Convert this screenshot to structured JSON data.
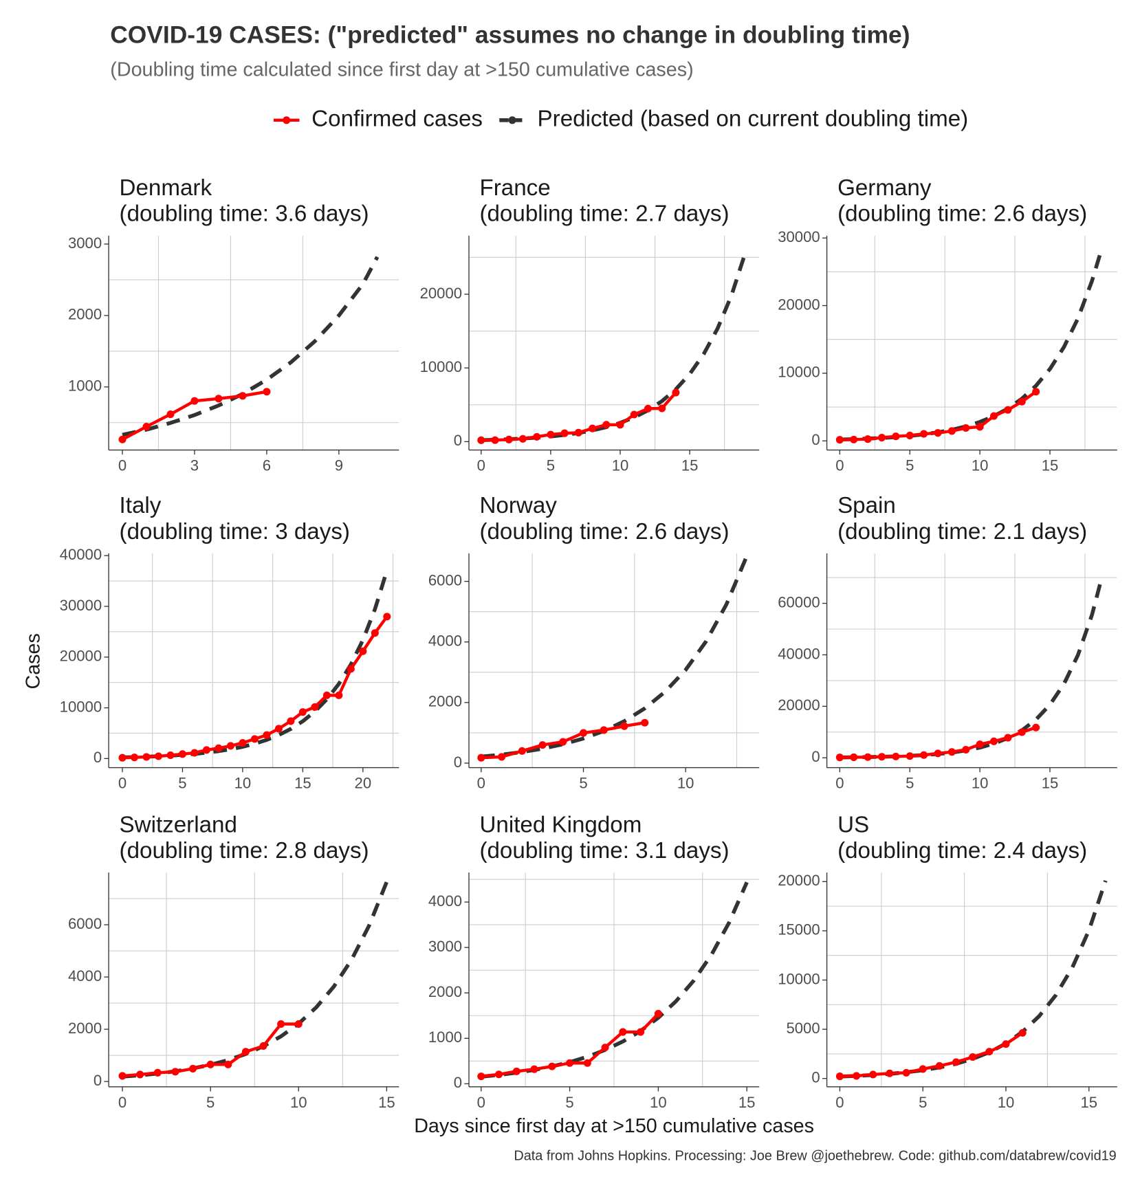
{
  "title": "COVID-19 CASES: (\"predicted\" assumes no change in doubling time)",
  "subtitle": "(Doubling time calculated since first day at >150 cumulative cases)",
  "x_label": "Days since first day at >150 cumulative cases",
  "y_label": "Cases",
  "caption": "Data from Johns Hopkins. Processing: Joe Brew @joethebrew. Code: github.com/databrew/covid19",
  "chart_data": [
    {
      "type": "line",
      "title": "Denmark",
      "subtitle": "(doubling time: 3.6 days)",
      "xlim": [
        -0.57,
        11.5
      ],
      "ylim": [
        117,
        3117
      ],
      "xticks": [
        0,
        3,
        6,
        9
      ],
      "yticks": [
        1000,
        2000,
        3000
      ],
      "x_grid": [
        1.5,
        4.5,
        7.5
      ],
      "y_grid": [
        500,
        1500,
        2500
      ],
      "series": [
        {
          "name": "Confirmed cases",
          "color": "#ff0000",
          "dots": true,
          "x": [
            0,
            1,
            2,
            3,
            4,
            5,
            6
          ],
          "values": [
            264,
            444,
            617,
            804,
            836,
            875,
            933
          ]
        },
        {
          "name": "Predicted (based on current doubling time)",
          "color": "#333333",
          "dashed": true,
          "x": [
            0,
            1,
            2,
            3,
            4,
            5,
            6,
            7,
            8,
            9,
            10,
            10.6
          ],
          "values": [
            330,
            402,
            496,
            606,
            740,
            902,
            1101,
            1343,
            1639,
            2000,
            2440,
            2820
          ]
        }
      ]
    },
    {
      "type": "line",
      "title": "France",
      "subtitle": "(doubling time: 2.7 days)",
      "xlim": [
        -0.88,
        20.0
      ],
      "ylim": [
        -1134,
        27938
      ],
      "xticks": [
        0,
        5,
        10,
        15
      ],
      "yticks": [
        0,
        10000,
        20000
      ],
      "x_grid": [
        2.5,
        7.5,
        12.5,
        17.5
      ],
      "y_grid": [
        5000,
        15000,
        25000
      ],
      "series": [
        {
          "name": "Confirmed cases",
          "color": "#ff0000",
          "dots": true,
          "x": [
            0,
            1,
            2,
            3,
            4,
            5,
            6,
            7,
            8,
            9,
            10,
            11,
            12,
            13,
            14
          ],
          "values": [
            191,
            204,
            288,
            380,
            656,
            959,
            1136,
            1217,
            1792,
            2289,
            2290,
            3672,
            4480,
            4513,
            6650
          ]
        },
        {
          "name": "Predicted (based on current doubling time)",
          "color": "#333333",
          "dashed": true,
          "x": [
            0,
            1,
            2,
            3,
            4,
            5,
            6,
            7,
            8,
            9,
            10,
            11,
            12,
            13,
            14,
            15,
            16,
            17,
            18,
            19
          ],
          "values": [
            195,
            252,
            326,
            421,
            545,
            704,
            910,
            1177,
            1521,
            1966,
            2542,
            3286,
            4248,
            5491,
            7098,
            9176,
            11862,
            15334,
            19822,
            25624
          ]
        }
      ]
    },
    {
      "type": "line",
      "title": "Germany",
      "subtitle": "(doubling time: 2.6 days)",
      "xlim": [
        -0.92,
        19.8
      ],
      "ylim": [
        -1348,
        30337
      ],
      "xticks": [
        0,
        5,
        10,
        15
      ],
      "yticks": [
        0,
        10000,
        20000,
        30000
      ],
      "x_grid": [
        2.5,
        7.5,
        12.5,
        17.5
      ],
      "y_grid": [
        5000,
        15000,
        25000
      ],
      "series": [
        {
          "name": "Confirmed cases",
          "color": "#ff0000",
          "dots": true,
          "x": [
            0,
            1,
            2,
            3,
            4,
            5,
            6,
            7,
            8,
            9,
            10,
            11,
            12,
            13,
            14
          ],
          "values": [
            159,
            196,
            262,
            482,
            670,
            799,
            1040,
            1176,
            1457,
            1908,
            2078,
            3675,
            4585,
            5795,
            7272
          ]
        },
        {
          "name": "Predicted (based on current doubling time)",
          "color": "#333333",
          "dashed": true,
          "x": [
            0,
            1,
            2,
            3,
            4,
            5,
            6,
            7,
            8,
            9,
            10,
            11,
            12,
            13,
            14,
            15,
            16,
            17,
            18,
            18.6
          ],
          "values": [
            195,
            255,
            332,
            434,
            566,
            739,
            965,
            1260,
            1645,
            2147,
            2803,
            3660,
            4778,
            6237,
            8143,
            10630,
            13878,
            18117,
            23652,
            27750
          ]
        }
      ]
    },
    {
      "type": "line",
      "title": "Italy",
      "subtitle": "(doubling time: 3 days)",
      "xlim": [
        -1.14,
        23.0
      ],
      "ylim": [
        -1791,
        40448
      ],
      "xticks": [
        0,
        5,
        10,
        15,
        20
      ],
      "yticks": [
        0,
        10000,
        20000,
        30000,
        40000
      ],
      "x_grid": [
        2.5,
        7.5,
        12.5,
        17.5,
        22.5
      ],
      "y_grid": [
        5000,
        15000,
        25000,
        35000
      ],
      "series": [
        {
          "name": "Confirmed cases",
          "color": "#ff0000",
          "dots": true,
          "x": [
            0,
            1,
            2,
            3,
            4,
            5,
            6,
            7,
            8,
            9,
            10,
            11,
            12,
            13,
            14,
            15,
            16,
            17,
            18,
            19,
            20,
            21,
            22
          ],
          "values": [
            155,
            229,
            322,
            453,
            655,
            888,
            1128,
            1694,
            2036,
            2502,
            3089,
            3858,
            4636,
            5883,
            7375,
            9172,
            10149,
            12462,
            12462,
            17660,
            21157,
            24747,
            27980
          ]
        },
        {
          "name": "Predicted (based on current doubling time)",
          "color": "#333333",
          "dashed": true,
          "x": [
            0,
            1,
            2,
            3,
            4,
            5,
            6,
            7,
            8,
            9,
            10,
            11,
            12,
            13,
            14,
            15,
            16,
            17,
            18,
            19,
            20,
            21,
            22
          ],
          "values": [
            230,
            290,
            365,
            460,
            580,
            730,
            920,
            1159,
            1460,
            1840,
            2318,
            2921,
            3680,
            4637,
            5842,
            7360,
            9274,
            11684,
            14720,
            18547,
            23368,
            29442,
            37094
          ]
        }
      ]
    },
    {
      "type": "line",
      "title": "Norway",
      "subtitle": "(doubling time: 2.6 days)",
      "xlim": [
        -0.6,
        13.6
      ],
      "ylim": [
        -150,
        6925
      ],
      "xticks": [
        0,
        5,
        10
      ],
      "yticks": [
        0,
        2000,
        4000,
        6000
      ],
      "x_grid": [
        2.5,
        7.5,
        12.5
      ],
      "y_grid": [
        1000,
        3000,
        5000
      ],
      "series": [
        {
          "name": "Confirmed cases",
          "color": "#ff0000",
          "dots": true,
          "x": [
            0,
            1,
            2,
            3,
            4,
            5,
            6,
            7,
            8
          ],
          "values": [
            176,
            205,
            400,
            598,
            702,
            996,
            1090,
            1221,
            1333
          ]
        },
        {
          "name": "Predicted (based on current doubling time)",
          "color": "#333333",
          "dashed": true,
          "x": [
            0,
            1,
            2,
            3,
            4,
            5,
            6,
            7,
            8,
            9,
            10,
            11,
            12,
            13
          ],
          "values": [
            214,
            279,
            365,
            476,
            622,
            812,
            1060,
            1383,
            1806,
            2358,
            3078,
            4019,
            5247,
            6850
          ]
        }
      ]
    },
    {
      "type": "line",
      "title": "Spain",
      "subtitle": "(doubling time: 2.1 days)",
      "xlim": [
        -0.92,
        19.8
      ],
      "ylim": [
        -3824,
        79410
      ],
      "xticks": [
        0,
        5,
        10,
        15
      ],
      "yticks": [
        0,
        20000,
        40000,
        60000
      ],
      "x_grid": [
        2.5,
        7.5,
        12.5,
        17.5
      ],
      "y_grid": [
        10000,
        30000,
        50000,
        70000
      ],
      "series": [
        {
          "name": "Confirmed cases",
          "color": "#ff0000",
          "dots": true,
          "x": [
            0,
            1,
            2,
            3,
            4,
            5,
            6,
            7,
            8,
            9,
            10,
            11,
            12,
            13,
            14
          ],
          "values": [
            151,
            222,
            259,
            400,
            500,
            673,
            1073,
            1695,
            2277,
            3146,
            5232,
            6391,
            7798,
            9942,
            11748
          ]
        },
        {
          "name": "Predicted (based on current doubling time)",
          "color": "#333333",
          "dashed": true,
          "x": [
            0,
            1,
            2,
            3,
            4,
            5,
            6,
            7,
            8,
            9,
            10,
            11,
            12,
            13,
            14,
            15,
            16,
            17,
            18,
            18.7
          ],
          "values": [
            146,
            203,
            283,
            393,
            547,
            761,
            1058,
            1472,
            2048,
            2848,
            3962,
            5511,
            7665,
            10662,
            14831,
            20630,
            28696,
            39916,
            55523,
            70000
          ]
        }
      ]
    },
    {
      "type": "line",
      "title": "Switzerland",
      "subtitle": "(doubling time: 2.8 days)",
      "xlim": [
        -0.78,
        15.7
      ],
      "ylim": [
        -203,
        8000
      ],
      "xticks": [
        0,
        5,
        10,
        15
      ],
      "yticks": [
        0,
        2000,
        4000,
        6000
      ],
      "x_grid": [
        2.5,
        7.5,
        12.5
      ],
      "y_grid": [
        1000,
        3000,
        5000,
        7000
      ],
      "series": [
        {
          "name": "Confirmed cases",
          "color": "#ff0000",
          "dots": true,
          "x": [
            0,
            1,
            2,
            3,
            4,
            5,
            6,
            7,
            8,
            9,
            10
          ],
          "values": [
            214,
            268,
            337,
            374,
            491,
            652,
            652,
            1139,
            1359,
            2200,
            2200
          ]
        },
        {
          "name": "Predicted (based on current doubling time)",
          "color": "#333333",
          "dashed": true,
          "x": [
            0,
            1,
            2,
            3,
            4,
            5,
            6,
            7,
            8,
            9,
            10,
            11,
            12,
            13,
            14,
            15
          ],
          "values": [
            186,
            238,
            305,
            391,
            501,
            642,
            822,
            1053,
            1349,
            1728,
            2214,
            2836,
            3633,
            4654,
            5962,
            7637
          ]
        }
      ]
    },
    {
      "type": "line",
      "title": "United Kingdom",
      "subtitle": "(doubling time: 3.1 days)",
      "xlim": [
        -0.69,
        15.7
      ],
      "ylim": [
        -67,
        4650
      ],
      "xticks": [
        0,
        5,
        10,
        15
      ],
      "yticks": [
        0,
        1000,
        2000,
        3000,
        4000
      ],
      "x_grid": [
        2.5,
        7.5,
        12.5
      ],
      "y_grid": [
        500,
        1500,
        2500,
        3500,
        4500
      ],
      "series": [
        {
          "name": "Confirmed cases",
          "color": "#ff0000",
          "dots": true,
          "x": [
            0,
            1,
            2,
            3,
            4,
            5,
            6,
            7,
            8,
            9,
            10
          ],
          "values": [
            163,
            206,
            273,
            321,
            382,
            456,
            456,
            798,
            1140,
            1140,
            1543
          ]
        },
        {
          "name": "Predicted (based on current doubling time)",
          "color": "#333333",
          "dashed": true,
          "x": [
            0,
            1,
            2,
            3,
            4,
            5,
            6,
            7,
            8,
            9,
            10,
            11,
            12,
            13,
            14,
            15
          ],
          "values": [
            156,
            195,
            244,
            305,
            381,
            476,
            595,
            744,
            930,
            1162,
            1453,
            1816,
            2270,
            2838,
            3548,
            4435
          ]
        }
      ]
    },
    {
      "type": "line",
      "title": "US",
      "subtitle": "(doubling time: 2.4 days)",
      "xlim": [
        -0.78,
        16.7
      ],
      "ylim": [
        -846,
        20923
      ],
      "xticks": [
        0,
        5,
        10,
        15
      ],
      "yticks": [
        0,
        5000,
        10000,
        15000,
        20000
      ],
      "x_grid": [
        2.5,
        7.5,
        12.5
      ],
      "y_grid": [
        2500,
        7500,
        12500,
        17500
      ],
      "series": [
        {
          "name": "Confirmed cases",
          "color": "#ff0000",
          "dots": true,
          "x": [
            0,
            1,
            2,
            3,
            4,
            5,
            6,
            7,
            8,
            9,
            10,
            11
          ],
          "values": [
            217,
            262,
            402,
            518,
            583,
            959,
            1281,
            1663,
            2179,
            2727,
            3499,
            4632
          ]
        },
        {
          "name": "Predicted (based on current doubling time)",
          "color": "#333333",
          "dashed": true,
          "x": [
            0,
            1,
            2,
            3,
            4,
            5,
            6,
            7,
            8,
            9,
            10,
            11,
            12,
            13,
            14,
            15,
            16
          ],
          "values": [
            198,
            264,
            353,
            471,
            628,
            839,
            1119,
            1494,
            1994,
            2662,
            3553,
            4742,
            6330,
            8450,
            11279,
            15055,
            20096
          ]
        }
      ]
    }
  ]
}
